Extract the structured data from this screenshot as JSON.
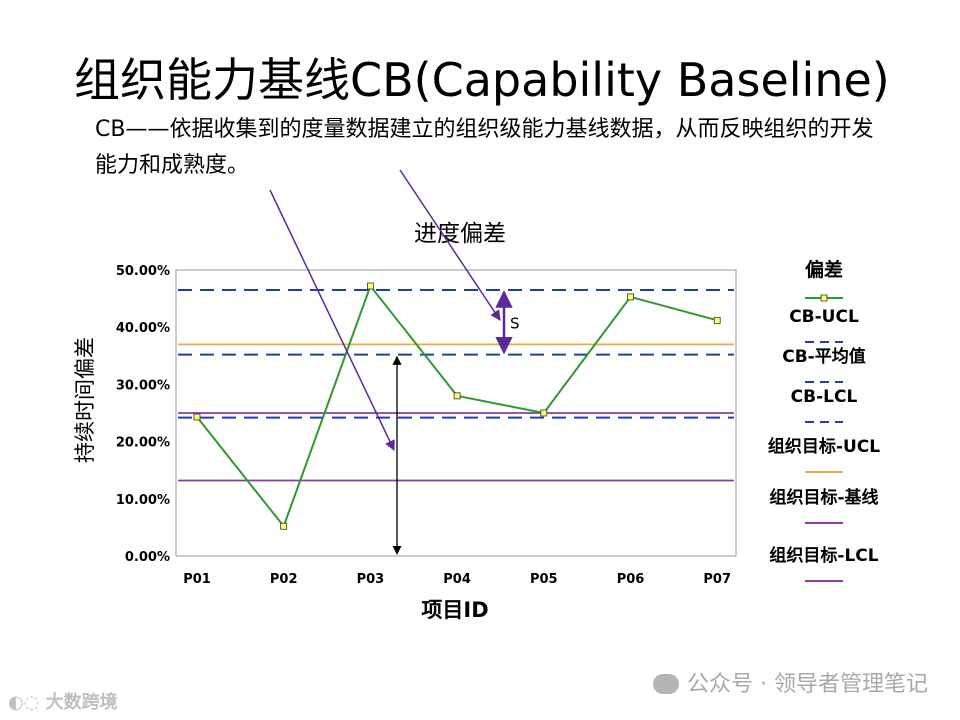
{
  "page": {
    "title": "组织能力基线CB(Capability Baseline)",
    "description": "CB——依据收集到的度量数据建立的组织级能力基线数据，从而反映组织的开发能力和成熟度。"
  },
  "chart_data": {
    "type": "line",
    "title": "进度偏差",
    "xlabel": "项目ID",
    "ylabel": "持续时间偏差",
    "categories": [
      "P01",
      "P02",
      "P03",
      "P04",
      "P05",
      "P06",
      "P07"
    ],
    "ylim": [
      0,
      50
    ],
    "yticks": [
      "0.00%",
      "10.00%",
      "20.00%",
      "30.00%",
      "40.00%",
      "50.00%"
    ],
    "series": [
      {
        "name": "偏差",
        "values": [
          24.3,
          5.2,
          47.2,
          28.0,
          25.0,
          45.3,
          41.2
        ],
        "color": "#2e9a2e"
      }
    ],
    "reference_lines": [
      {
        "name": "CB-UCL",
        "value": 46.5,
        "color": "#1f3fa8",
        "style": "dashed"
      },
      {
        "name": "组织目标-UCL",
        "value": 37.0,
        "color": "#f0a840",
        "style": "solid"
      },
      {
        "name": "CB-平均值",
        "value": 35.2,
        "color": "#1f3fa8",
        "style": "dashed"
      },
      {
        "name": "组织目标-基线",
        "value": 25.0,
        "color": "#8e3aa8",
        "style": "solid"
      },
      {
        "name": "CB-LCL",
        "value": 24.2,
        "color": "#1f3fa8",
        "style": "dashed"
      },
      {
        "name": "组织目标-LCL",
        "value": 13.2,
        "color": "#8e3aa8",
        "style": "solid"
      }
    ],
    "annotation": {
      "label": "S",
      "from_value": 46.5,
      "to_value": 35.2
    },
    "range_arrow": {
      "from_value": 35.2,
      "to_value": 0
    },
    "legend": [
      {
        "label": "偏差",
        "color": "#2e9a2e",
        "style": "marker-line"
      },
      {
        "label": "CB-UCL",
        "color": "#1f3fa8",
        "style": "dashed"
      },
      {
        "label": "CB-平均值",
        "color": "#1f3fa8",
        "style": "dashed"
      },
      {
        "label": "CB-LCL",
        "color": "#1f3fa8",
        "style": "dashed"
      },
      {
        "label": "组织目标-UCL",
        "color": "#f0a840",
        "style": "solid"
      },
      {
        "label": "组织目标-基线",
        "color": "#8e3aa8",
        "style": "solid"
      },
      {
        "label": "组织目标-LCL",
        "color": "#8e3aa8",
        "style": "solid"
      }
    ]
  },
  "watermark": {
    "text": "公众号 · 领导者管理笔记",
    "icon": "wechat-icon"
  },
  "corner_logo": {
    "text": "大数跨境"
  }
}
